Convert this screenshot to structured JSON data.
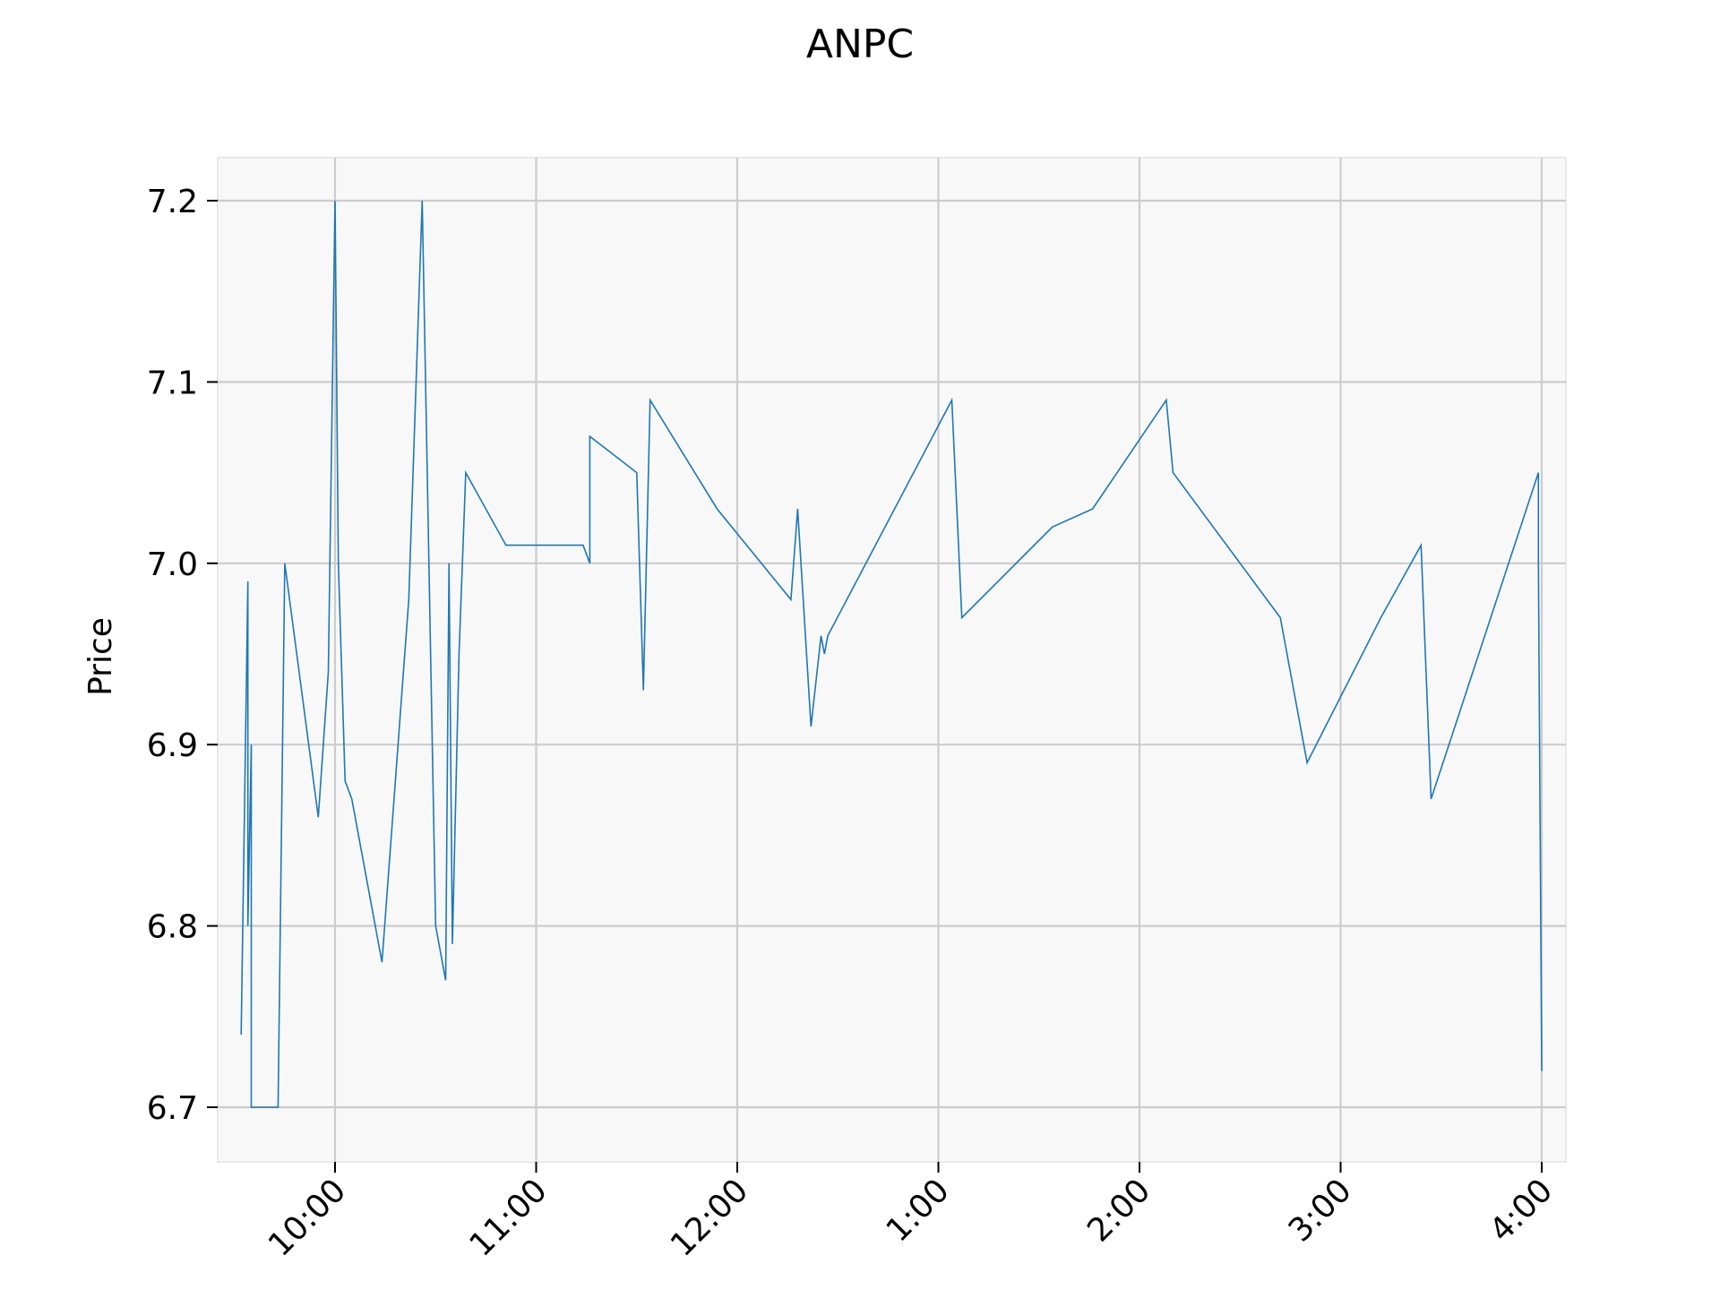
{
  "chart_data": {
    "type": "line",
    "title": "ANPC",
    "xlabel": "",
    "ylabel": "Price",
    "xlim": [
      "9:30",
      "4:00"
    ],
    "ylim": [
      6.675,
      7.225
    ],
    "grid": true,
    "legend": "none",
    "colors": {
      "line": "#1f77b4",
      "grid": "#cccccc",
      "plot_bg": "#f8f8f8",
      "frame": "#e8e8e8"
    },
    "x_ticks": [
      {
        "value": "10:00",
        "label": "10:00"
      },
      {
        "value": "11:00",
        "label": "11:00"
      },
      {
        "value": "12:00",
        "label": "12:00"
      },
      {
        "value": "13:00",
        "label": "1:00"
      },
      {
        "value": "14:00",
        "label": "2:00"
      },
      {
        "value": "15:00",
        "label": "3:00"
      },
      {
        "value": "16:00",
        "label": "4:00"
      }
    ],
    "y_ticks": [
      {
        "value": 6.7,
        "label": "6.7"
      },
      {
        "value": 6.8,
        "label": "6.8"
      },
      {
        "value": 6.9,
        "label": "6.9"
      },
      {
        "value": 7.0,
        "label": "7.0"
      },
      {
        "value": 7.1,
        "label": "7.1"
      },
      {
        "value": 7.2,
        "label": "7.2"
      }
    ],
    "series": [
      {
        "x": [
          "9:32",
          "9:34",
          "9:34",
          "9:35",
          "9:35",
          "9:43",
          "9:45",
          "9:55",
          "9:58",
          "10:00",
          "10:01",
          "10:03",
          "10:05",
          "10:14",
          "10:22",
          "10:26",
          "10:30",
          "10:33",
          "10:34",
          "10:35",
          "10:37",
          "10:39",
          "10:51",
          "11:14",
          "11:16",
          "11:16",
          "11:30",
          "11:32",
          "11:34",
          "11:54",
          "12:16",
          "12:18",
          "12:22",
          "12:25",
          "12:26",
          "12:27",
          "13:04",
          "13:07",
          "13:34",
          "13:46",
          "14:08",
          "14:10",
          "14:42",
          "14:50",
          "15:01",
          "15:12",
          "15:24",
          "15:27",
          "15:59",
          "15:59",
          "16:00"
        ],
        "values": [
          6.74,
          6.99,
          6.8,
          6.9,
          6.7,
          6.7,
          7.0,
          6.86,
          6.94,
          7.2,
          7.0,
          6.88,
          6.87,
          6.78,
          6.98,
          7.2,
          6.8,
          6.77,
          7.0,
          6.79,
          6.95,
          7.05,
          7.01,
          7.01,
          7.0,
          7.07,
          7.05,
          6.93,
          7.09,
          7.03,
          6.98,
          7.03,
          6.91,
          6.96,
          6.95,
          6.96,
          7.09,
          6.97,
          7.02,
          7.03,
          7.09,
          7.05,
          6.97,
          6.89,
          6.93,
          6.97,
          7.01,
          6.87,
          7.05,
          7.0,
          6.72
        ]
      }
    ]
  }
}
